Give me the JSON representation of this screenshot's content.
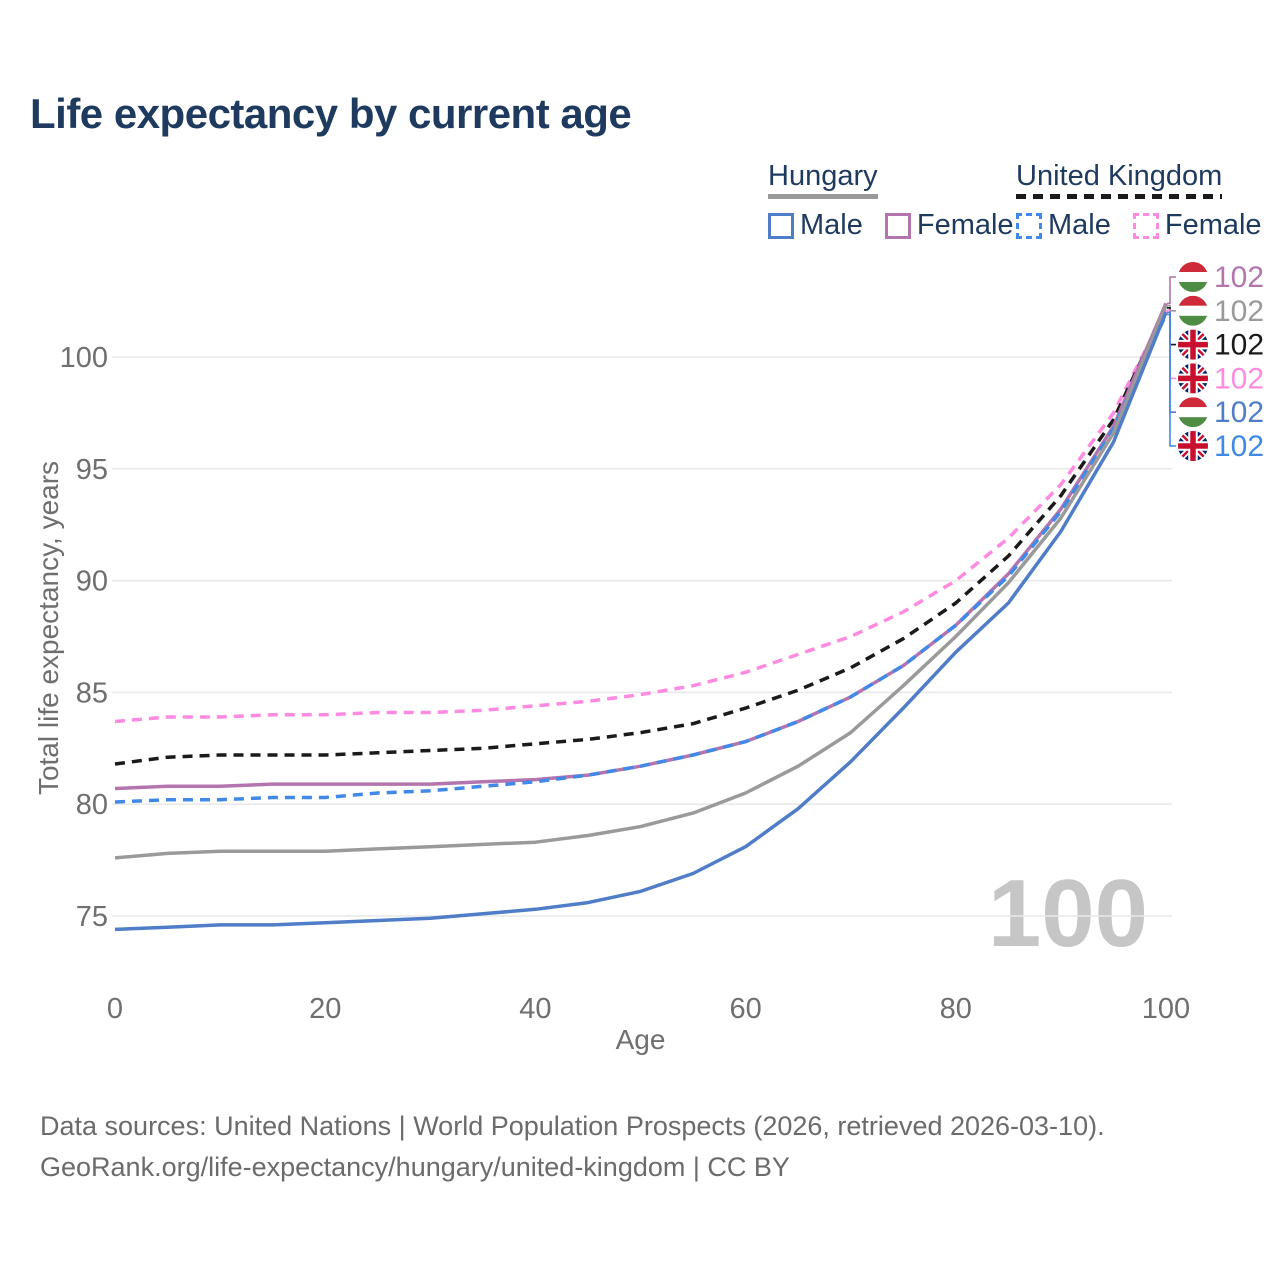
{
  "title": "Life expectancy by current age",
  "text_color": "#1e3a5f",
  "grid_color": "#e9e9e9",
  "tick_color": "#6f6f6f",
  "watermark_color": "#c6c6c6",
  "legend": {
    "groups": [
      {
        "name": "Hungary",
        "line_style": "solid",
        "line_color": "#9a9a9a",
        "items": [
          {
            "label": "Male",
            "color": "#4f7dc8",
            "dashed": false
          },
          {
            "label": "Female",
            "color": "#b475ae",
            "dashed": false
          }
        ]
      },
      {
        "name": "United Kingdom",
        "line_style": "dashed",
        "line_color": "#1a1a1a",
        "items": [
          {
            "label": "Male",
            "color": "#4189e8",
            "dashed": true
          },
          {
            "label": "Female",
            "color": "#ff8ae0",
            "dashed": true
          }
        ]
      }
    ]
  },
  "chart_data": {
    "type": "line",
    "title": "Life expectancy by current age",
    "xlabel": "Age",
    "ylabel": "Total life expectancy, years",
    "xlim": [
      0,
      100
    ],
    "ylim": [
      73.5,
      103
    ],
    "x_ticks": [
      0,
      20,
      40,
      60,
      80,
      100
    ],
    "y_ticks": [
      75,
      80,
      85,
      90,
      95,
      100
    ],
    "grid": "horizontal-only",
    "legend_position": "top-right",
    "age_annotation": "100",
    "x": [
      0,
      5,
      10,
      15,
      20,
      25,
      30,
      35,
      40,
      45,
      50,
      55,
      60,
      65,
      70,
      75,
      80,
      85,
      90,
      95,
      100
    ],
    "series": [
      {
        "id": "uk_female",
        "name": "United Kingdom Female",
        "country": "uk",
        "color": "#ff8ae0",
        "dashed": true,
        "end_label": "102",
        "values": [
          83.7,
          83.9,
          83.9,
          84.0,
          84.0,
          84.1,
          84.1,
          84.2,
          84.4,
          84.6,
          84.9,
          85.3,
          85.9,
          86.7,
          87.5,
          88.6,
          90.0,
          91.9,
          94.3,
          97.5,
          102.1
        ]
      },
      {
        "id": "uk_total",
        "name": "United Kingdom",
        "country": "uk",
        "color": "#1a1a1a",
        "dashed": true,
        "end_label": "102",
        "values": [
          81.8,
          82.1,
          82.2,
          82.2,
          82.2,
          82.3,
          82.4,
          82.5,
          82.7,
          82.9,
          83.2,
          83.6,
          84.3,
          85.1,
          86.1,
          87.4,
          89.0,
          91.1,
          93.8,
          97.2,
          102.2
        ]
      },
      {
        "id": "hu_female",
        "name": "Hungary Female",
        "country": "hu",
        "color": "#b475ae",
        "dashed": false,
        "end_label": "102",
        "values": [
          80.7,
          80.8,
          80.8,
          80.9,
          80.9,
          80.9,
          80.9,
          81.0,
          81.1,
          81.3,
          81.7,
          82.2,
          82.8,
          83.7,
          84.8,
          86.2,
          88.0,
          90.3,
          93.2,
          96.9,
          102.4
        ]
      },
      {
        "id": "uk_male",
        "name": "United Kingdom Male",
        "country": "uk",
        "color": "#4189e8",
        "dashed": true,
        "end_label": "102",
        "values": [
          80.1,
          80.2,
          80.2,
          80.3,
          80.3,
          80.5,
          80.6,
          80.8,
          81.0,
          81.3,
          81.7,
          82.2,
          82.8,
          83.7,
          84.8,
          86.2,
          88.0,
          90.2,
          93.1,
          96.8,
          101.9
        ]
      },
      {
        "id": "hu_total",
        "name": "Hungary",
        "country": "hu",
        "color": "#9a9a9a",
        "dashed": false,
        "end_label": "102",
        "values": [
          77.6,
          77.8,
          77.9,
          77.9,
          77.9,
          78.0,
          78.1,
          78.2,
          78.3,
          78.6,
          79.0,
          79.6,
          80.5,
          81.7,
          83.2,
          85.3,
          87.5,
          89.9,
          92.8,
          96.6,
          102.3
        ]
      },
      {
        "id": "hu_male",
        "name": "Hungary Male",
        "country": "hu",
        "color": "#4f7dc8",
        "dashed": false,
        "end_label": "102",
        "values": [
          74.4,
          74.5,
          74.6,
          74.6,
          74.7,
          74.8,
          74.9,
          75.1,
          75.3,
          75.6,
          76.1,
          76.9,
          78.1,
          79.8,
          81.9,
          84.3,
          86.8,
          89.0,
          92.2,
          96.2,
          102.0
        ]
      }
    ]
  },
  "flags": {
    "hungary_red": "#ce2a3a",
    "hungary_green": "#4e8c43",
    "uk_blue": "#012169",
    "uk_red": "#C8102E"
  },
  "footer": {
    "line1": "Data sources: United Nations | World Population Prospects (2026, retrieved 2026-03-10).",
    "line2": "GeoRank.org/life-expectancy/hungary/united-kingdom | CC BY"
  }
}
